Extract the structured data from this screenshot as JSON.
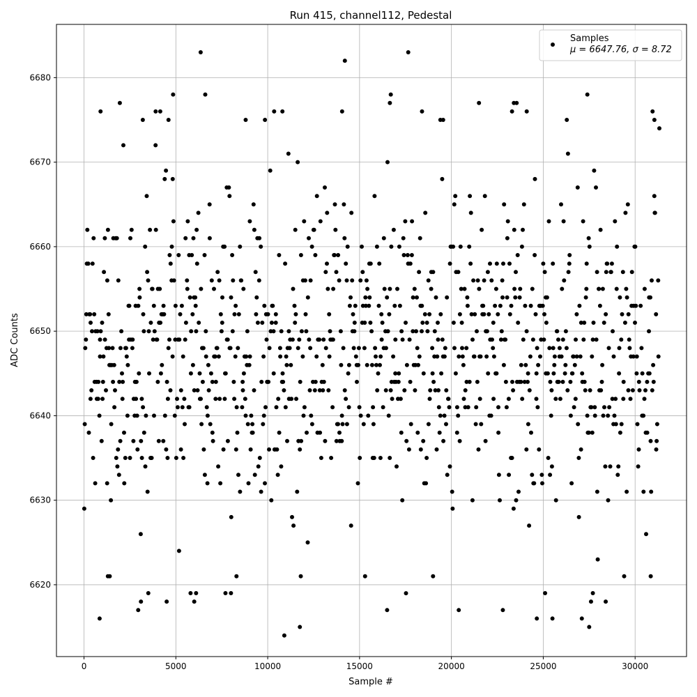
{
  "chart_data": {
    "type": "scatter",
    "title": "Run 415, channel112, Pedestal",
    "xlabel": "Sample #",
    "ylabel": "ADC Counts",
    "xlim": [
      -1500,
      32800
    ],
    "ylim": [
      6611.5,
      6686.3
    ],
    "x_ticks": [
      0,
      5000,
      10000,
      15000,
      20000,
      25000,
      30000
    ],
    "y_ticks": [
      6620,
      6630,
      6640,
      6650,
      6660,
      6670,
      6680
    ],
    "grid": true,
    "legend": {
      "placement": "top-right",
      "entries": [
        {
          "label": "Samples",
          "sublabel": "μ = 6647.76, σ = 8.72",
          "marker": "dot",
          "color": "#000000"
        }
      ]
    },
    "series": [
      {
        "name": "Samples",
        "color": "#000000",
        "n_samples": 31300,
        "mean": 6647.76,
        "sigma": 8.72,
        "outliers": [
          {
            "x": 6350,
            "y": 6683
          },
          {
            "x": 14200,
            "y": 6682
          },
          {
            "x": 17650,
            "y": 6683
          },
          {
            "x": 4850,
            "y": 6678
          },
          {
            "x": 6600,
            "y": 6678
          },
          {
            "x": 16700,
            "y": 6678
          },
          {
            "x": 27400,
            "y": 6678
          },
          {
            "x": 1950,
            "y": 6677
          },
          {
            "x": 16650,
            "y": 6677
          },
          {
            "x": 21500,
            "y": 6677
          },
          {
            "x": 23400,
            "y": 6677
          },
          {
            "x": 23550,
            "y": 6677
          },
          {
            "x": 900,
            "y": 6676
          },
          {
            "x": 3900,
            "y": 6676
          },
          {
            "x": 4150,
            "y": 6676
          },
          {
            "x": 10350,
            "y": 6676
          },
          {
            "x": 10800,
            "y": 6676
          },
          {
            "x": 14050,
            "y": 6676
          },
          {
            "x": 18400,
            "y": 6676
          },
          {
            "x": 23300,
            "y": 6676
          },
          {
            "x": 24100,
            "y": 6676
          },
          {
            "x": 30950,
            "y": 6676
          },
          {
            "x": 3200,
            "y": 6675
          },
          {
            "x": 4600,
            "y": 6675
          },
          {
            "x": 8800,
            "y": 6675
          },
          {
            "x": 9850,
            "y": 6675
          },
          {
            "x": 19400,
            "y": 6675
          },
          {
            "x": 19550,
            "y": 6675
          },
          {
            "x": 31050,
            "y": 6675
          },
          {
            "x": 850,
            "y": 6616
          },
          {
            "x": 2950,
            "y": 6617
          },
          {
            "x": 3100,
            "y": 6618
          },
          {
            "x": 4500,
            "y": 6618
          },
          {
            "x": 6000,
            "y": 6618
          },
          {
            "x": 6100,
            "y": 6619
          },
          {
            "x": 5800,
            "y": 6619
          },
          {
            "x": 3500,
            "y": 6619
          },
          {
            "x": 7700,
            "y": 6619
          },
          {
            "x": 8000,
            "y": 6619
          },
          {
            "x": 11750,
            "y": 6615
          },
          {
            "x": 16500,
            "y": 6617
          },
          {
            "x": 20400,
            "y": 6617
          },
          {
            "x": 22800,
            "y": 6617
          },
          {
            "x": 24650,
            "y": 6616
          },
          {
            "x": 25500,
            "y": 6616
          },
          {
            "x": 27100,
            "y": 6616
          },
          {
            "x": 27500,
            "y": 6615
          },
          {
            "x": 27600,
            "y": 6618
          },
          {
            "x": 28400,
            "y": 6618
          },
          {
            "x": 25100,
            "y": 6619
          },
          {
            "x": 27700,
            "y": 6619
          },
          {
            "x": 11800,
            "y": 6621
          },
          {
            "x": 15300,
            "y": 6621
          },
          {
            "x": 19000,
            "y": 6621
          },
          {
            "x": 30850,
            "y": 6621
          },
          {
            "x": 1300,
            "y": 6621
          },
          {
            "x": 1400,
            "y": 6621
          },
          {
            "x": 8300,
            "y": 6621
          }
        ]
      }
    ]
  }
}
